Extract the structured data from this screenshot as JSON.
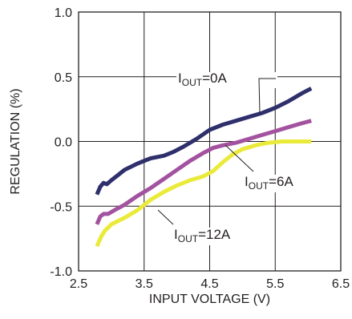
{
  "chart_data": {
    "type": "line",
    "title": "",
    "xlabel": "INPUT VOLTAGE (V)",
    "ylabel": "REGULATION (%)",
    "xlim": [
      2.5,
      6.5
    ],
    "ylim": [
      -1.0,
      1.0
    ],
    "x_ticks": [
      "2.5",
      "3.5",
      "4.5",
      "5.5",
      "6.5"
    ],
    "y_ticks": [
      "1.0",
      "0.5",
      "0.0",
      "-0.5",
      "-1.0"
    ],
    "grid": true,
    "series": [
      {
        "name": "IOUT=0A",
        "label_main": "I",
        "label_sub": "OUT",
        "label_tail": "=0A",
        "color": "#2e2f6b",
        "points": [
          [
            2.78,
            -0.41
          ],
          [
            2.83,
            -0.35
          ],
          [
            2.88,
            -0.32
          ],
          [
            2.93,
            -0.33
          ],
          [
            3.0,
            -0.3
          ],
          [
            3.1,
            -0.26
          ],
          [
            3.2,
            -0.22
          ],
          [
            3.4,
            -0.17
          ],
          [
            3.6,
            -0.13
          ],
          [
            3.8,
            -0.11
          ],
          [
            3.95,
            -0.08
          ],
          [
            4.1,
            -0.04
          ],
          [
            4.3,
            0.02
          ],
          [
            4.5,
            0.09
          ],
          [
            4.7,
            0.13
          ],
          [
            4.9,
            0.16
          ],
          [
            5.1,
            0.19
          ],
          [
            5.3,
            0.22
          ],
          [
            5.5,
            0.26
          ],
          [
            5.7,
            0.31
          ],
          [
            5.9,
            0.37
          ],
          [
            6.05,
            0.41
          ]
        ]
      },
      {
        "name": "IOUT=6A",
        "label_main": "I",
        "label_sub": "OUT",
        "label_tail": "=6A",
        "color": "#a2529e",
        "points": [
          [
            2.78,
            -0.64
          ],
          [
            2.83,
            -0.58
          ],
          [
            2.88,
            -0.56
          ],
          [
            2.95,
            -0.56
          ],
          [
            3.05,
            -0.53
          ],
          [
            3.2,
            -0.49
          ],
          [
            3.4,
            -0.42
          ],
          [
            3.6,
            -0.36
          ],
          [
            3.8,
            -0.29
          ],
          [
            4.0,
            -0.22
          ],
          [
            4.2,
            -0.15
          ],
          [
            4.4,
            -0.09
          ],
          [
            4.55,
            -0.05
          ],
          [
            4.7,
            -0.03
          ],
          [
            4.9,
            -0.01
          ],
          [
            5.1,
            0.02
          ],
          [
            5.3,
            0.05
          ],
          [
            5.5,
            0.08
          ],
          [
            5.7,
            0.11
          ],
          [
            5.9,
            0.14
          ],
          [
            6.05,
            0.16
          ]
        ]
      },
      {
        "name": "IOUT=12A",
        "label_main": "I",
        "label_sub": "OUT",
        "label_tail": "=12A",
        "color": "#eaea3a",
        "points": [
          [
            2.78,
            -0.81
          ],
          [
            2.84,
            -0.74
          ],
          [
            2.9,
            -0.69
          ],
          [
            3.0,
            -0.64
          ],
          [
            3.2,
            -0.59
          ],
          [
            3.4,
            -0.53
          ],
          [
            3.6,
            -0.45
          ],
          [
            3.8,
            -0.39
          ],
          [
            4.0,
            -0.34
          ],
          [
            4.2,
            -0.3
          ],
          [
            4.4,
            -0.27
          ],
          [
            4.55,
            -0.23
          ],
          [
            4.7,
            -0.16
          ],
          [
            4.85,
            -0.1
          ],
          [
            5.0,
            -0.06
          ],
          [
            5.2,
            -0.03
          ],
          [
            5.4,
            -0.01
          ],
          [
            5.6,
            0.0
          ],
          [
            5.8,
            0.0
          ],
          [
            6.05,
            0.0
          ]
        ]
      }
    ]
  }
}
